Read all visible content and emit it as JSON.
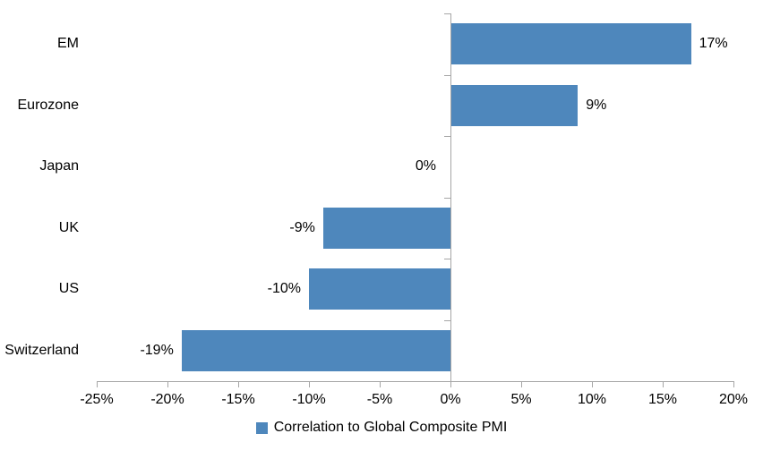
{
  "chart_data": {
    "type": "bar",
    "orientation": "horizontal",
    "title": "",
    "categories": [
      "EM",
      "Eurozone",
      "Japan",
      "UK",
      "US",
      "Switzerland"
    ],
    "values": [
      17,
      9,
      0,
      -9,
      -10,
      -19
    ],
    "data_labels": [
      "17%",
      "9%",
      "0%",
      "-9%",
      "-10%",
      "-19%"
    ],
    "series_name": "Correlation to Global Composite PMI",
    "xlim": [
      -25,
      20
    ],
    "x_tick_step": 5,
    "x_tick_labels": [
      "-25%",
      "-20%",
      "-15%",
      "-10%",
      "-5%",
      "0%",
      "5%",
      "10%",
      "15%",
      "20%"
    ],
    "grid": "off",
    "legend_position": "bottom-center",
    "colors": {
      "bar": "#4E87BC",
      "axis": "#A6A6A6",
      "text": "#000000",
      "background": "#FFFFFF"
    }
  }
}
